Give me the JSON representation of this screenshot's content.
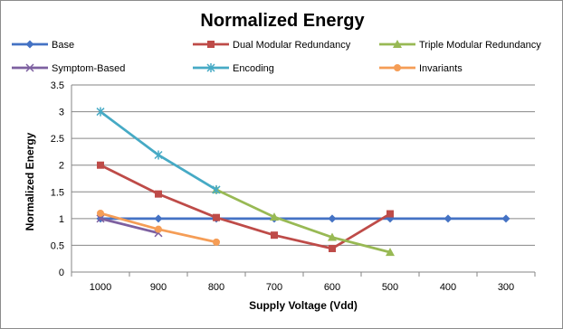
{
  "chart_data": {
    "type": "line",
    "title": "Normalized Energy",
    "xlabel": "Supply Voltage (Vdd)",
    "ylabel": "Normalized Energy",
    "categories": [
      "1000",
      "900",
      "800",
      "700",
      "600",
      "500",
      "400",
      "300"
    ],
    "ylim": [
      0,
      3.5
    ],
    "yticks": [
      "0",
      "0.5",
      "1",
      "1.5",
      "2",
      "2.5",
      "3",
      "3.5"
    ],
    "grid": true,
    "legend_position": "top",
    "series": [
      {
        "name": "Base",
        "color": "#4472c4",
        "marker": "diamond",
        "values": [
          1,
          1,
          1,
          1,
          1,
          1,
          1,
          1
        ]
      },
      {
        "name": "Dual Modular Redundancy",
        "color": "#be4b48",
        "marker": "square",
        "values": [
          2.0,
          1.46,
          1.02,
          0.69,
          0.44,
          1.09,
          null,
          null
        ]
      },
      {
        "name": "Triple Modular Redundancy",
        "color": "#98b954",
        "marker": "triangle",
        "values": [
          null,
          null,
          1.54,
          1.03,
          0.65,
          0.37,
          null,
          null
        ]
      },
      {
        "name": "Symptom-Based",
        "color": "#7d60a0",
        "marker": "x",
        "values": [
          1.0,
          0.73,
          null,
          null,
          null,
          null,
          null,
          null
        ]
      },
      {
        "name": "Encoding",
        "color": "#46aac5",
        "marker": "star",
        "values": [
          3.0,
          2.19,
          1.54,
          null,
          null,
          null,
          null,
          null
        ]
      },
      {
        "name": "Invariants",
        "color": "#f59d56",
        "marker": "circle",
        "values": [
          1.1,
          0.8,
          0.56,
          null,
          null,
          null,
          null,
          null
        ]
      }
    ]
  }
}
